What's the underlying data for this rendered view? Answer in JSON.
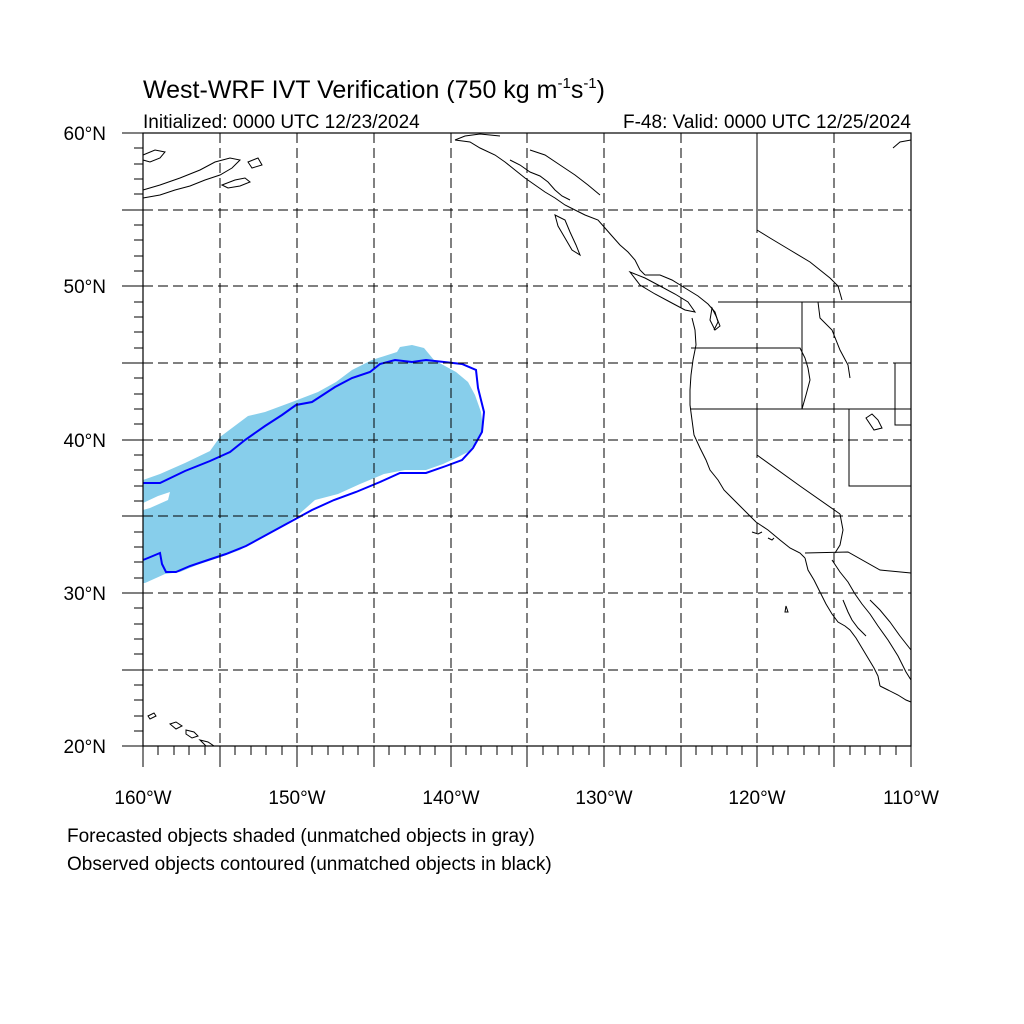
{
  "header": {
    "title_main": "West-WRF IVT Verification (750 kg m",
    "title_exp1": "-1",
    "title_mid": "s",
    "title_exp2": "-1",
    "title_close": ")",
    "initialized": "Initialized: 0000 UTC 12/23/2024",
    "valid": "F-48: Valid: 0000 UTC 12/25/2024"
  },
  "axes": {
    "lat_labels": [
      "60°N",
      "50°N",
      "40°N",
      "30°N",
      "20°N"
    ],
    "lon_labels": [
      "160°W",
      "150°W",
      "140°W",
      "130°W",
      "120°W",
      "110°W"
    ]
  },
  "legend_notes": [
    "Forecasted objects shaded (unmatched objects in gray)",
    "Observed objects contoured (unmatched objects in black)"
  ],
  "colors": {
    "forecast_fill": "#87ceeb",
    "observed_contour": "#0000ff",
    "coastline": "#000000"
  },
  "map": {
    "projection": "cylindrical equidistant",
    "lat_range": [
      20,
      60
    ],
    "lon_range": [
      -160,
      -110
    ],
    "gridline_interval_deg": 5,
    "gridlines": "dashed"
  }
}
